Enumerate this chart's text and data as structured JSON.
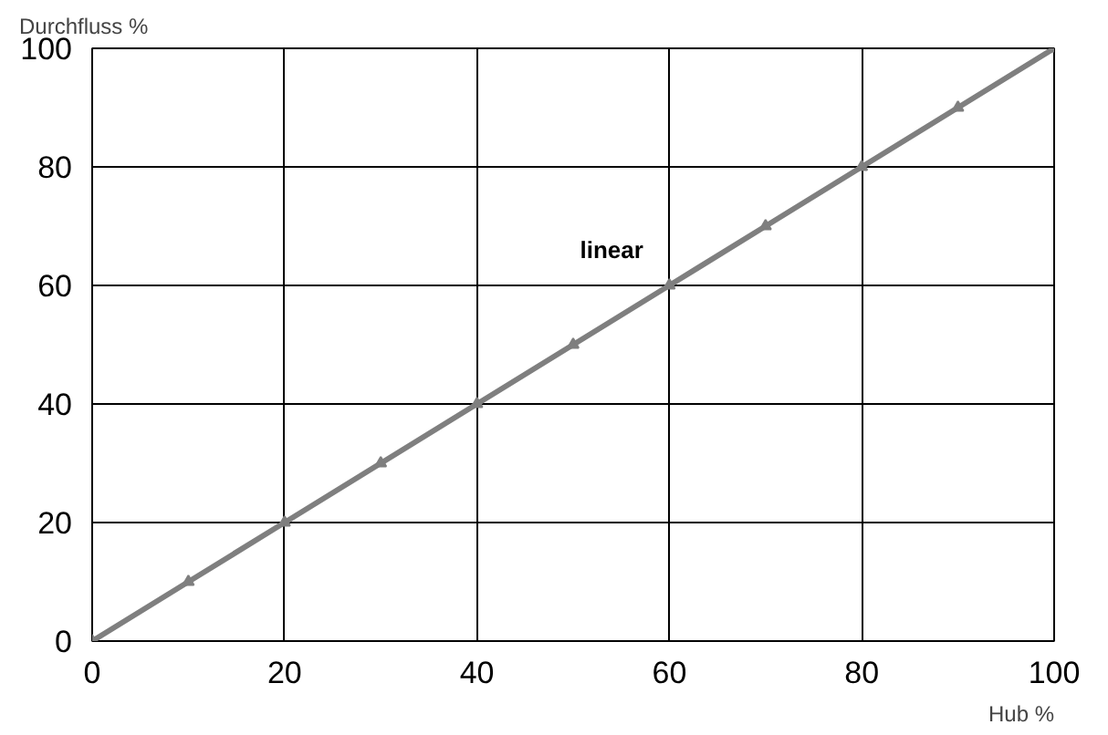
{
  "chart_data": {
    "type": "line",
    "xlabel": "Hub %",
    "ylabel": "Durchfluss %",
    "x": [
      0,
      10,
      20,
      30,
      40,
      50,
      60,
      70,
      80,
      90,
      100
    ],
    "series": [
      {
        "color": "#7f7f7f",
        "values": [
          0,
          10,
          20,
          30,
          40,
          50,
          60,
          70,
          80,
          90,
          100
        ]
      }
    ],
    "annotations": [
      "linear"
    ],
    "xlim": [
      0,
      100
    ],
    "ylim": [
      0,
      100
    ],
    "xticks": [
      0,
      20,
      40,
      60,
      80,
      100
    ],
    "yticks": [
      0,
      20,
      40,
      60,
      80,
      100
    ],
    "grid": true,
    "marker": "triangle",
    "line_style": "solid"
  }
}
